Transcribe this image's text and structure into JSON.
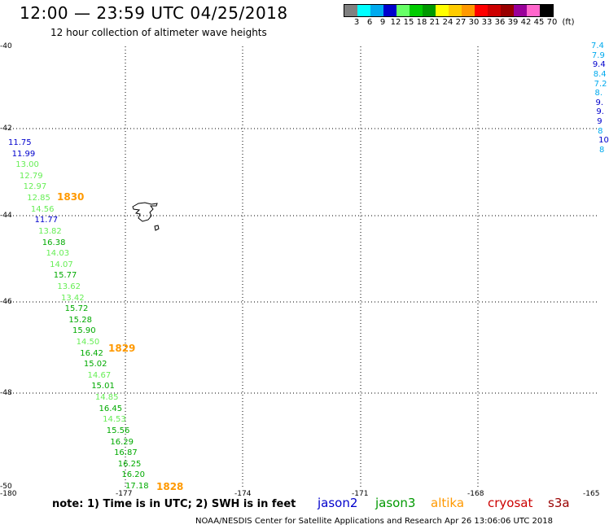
{
  "header": {
    "title": "12:00 — 23:59 UTC 04/25/2018",
    "subtitle": "12 hour collection of altimeter wave heights"
  },
  "colorbar": {
    "colors": [
      "#808080",
      "#00ffff",
      "#00aaee",
      "#0000cc",
      "#66ff66",
      "#00cc00",
      "#009900",
      "#ffff00",
      "#ffcc00",
      "#ff9900",
      "#ff0000",
      "#cc0000",
      "#990000",
      "#990099",
      "#ff66cc",
      "#000000"
    ],
    "labels": [
      "3",
      "6",
      "9",
      "12",
      "15",
      "18",
      "21",
      "24",
      "27",
      "30",
      "33",
      "36",
      "39",
      "42",
      "45",
      "70",
      "(ft)"
    ]
  },
  "axes": {
    "lat_labels": [
      "-40",
      "-42",
      "-44",
      "-46",
      "-48",
      "-50"
    ],
    "lon_labels": [
      "-180",
      "-177",
      "-174",
      "-171",
      "-168",
      "-165"
    ]
  },
  "observations": [
    {
      "v": "11.75",
      "c": "#0000cc"
    },
    {
      "v": "11.99",
      "c": "#0000cc"
    },
    {
      "v": "13.00",
      "c": "#66ee55"
    },
    {
      "v": "12.79",
      "c": "#66ee55"
    },
    {
      "v": "12.97",
      "c": "#66ee55"
    },
    {
      "v": "12.85",
      "c": "#66ee55"
    },
    {
      "v": "14.56",
      "c": "#66ee55"
    },
    {
      "v": "11.77",
      "c": "#0000cc"
    },
    {
      "v": "13.82",
      "c": "#66ee55"
    },
    {
      "v": "16.38",
      "c": "#00aa00"
    },
    {
      "v": "14.03",
      "c": "#66ee55"
    },
    {
      "v": "14.07",
      "c": "#66ee55"
    },
    {
      "v": "15.77",
      "c": "#00aa00"
    },
    {
      "v": "13.62",
      "c": "#66ee55"
    },
    {
      "v": "13.42",
      "c": "#66ee55"
    },
    {
      "v": "15.72",
      "c": "#00aa00"
    },
    {
      "v": "15.28",
      "c": "#00aa00"
    },
    {
      "v": "15.90",
      "c": "#00aa00"
    },
    {
      "v": "14.50",
      "c": "#66ee55"
    },
    {
      "v": "16.42",
      "c": "#00aa00"
    },
    {
      "v": "15.02",
      "c": "#00aa00"
    },
    {
      "v": "14.67",
      "c": "#66ee55"
    },
    {
      "v": "15.01",
      "c": "#00aa00"
    },
    {
      "v": "14.85",
      "c": "#66ee55"
    },
    {
      "v": "16.45",
      "c": "#00aa00"
    },
    {
      "v": "14.53",
      "c": "#66ee55"
    },
    {
      "v": "15.56",
      "c": "#00aa00"
    },
    {
      "v": "16.29",
      "c": "#00aa00"
    },
    {
      "v": "16.87",
      "c": "#00aa00"
    },
    {
      "v": "16.25",
      "c": "#00aa00"
    },
    {
      "v": "16.20",
      "c": "#00aa00"
    },
    {
      "v": "17.18",
      "c": "#00aa00"
    }
  ],
  "right_edge_observations": [
    {
      "v": "7.4",
      "c": "#00aaee"
    },
    {
      "v": "7.9",
      "c": "#00aaee"
    },
    {
      "v": "9.4",
      "c": "#0000cc"
    },
    {
      "v": "8.4",
      "c": "#00aaee"
    },
    {
      "v": "7.2",
      "c": "#00aaee"
    },
    {
      "v": "8.",
      "c": "#00aaee"
    },
    {
      "v": "9.",
      "c": "#0000cc"
    },
    {
      "v": "9.",
      "c": "#0000cc"
    },
    {
      "v": "9",
      "c": "#0000cc"
    },
    {
      "v": "8",
      "c": "#00aaee"
    },
    {
      "v": "10",
      "c": "#0000cc"
    },
    {
      "v": "8",
      "c": "#00aaee"
    }
  ],
  "time_labels": [
    "1830",
    "1829",
    "1828"
  ],
  "note": "note:  1) Time is in UTC;  2) SWH is in feet",
  "satellites": [
    {
      "name": "jason2",
      "color": "#0000cc"
    },
    {
      "name": "jason3",
      "color": "#009900"
    },
    {
      "name": "altika",
      "color": "#ff9900"
    },
    {
      "name": "cryosat",
      "color": "#cc0000"
    },
    {
      "name": "s3a",
      "color": "#990000"
    }
  ],
  "footer": "NOAA/NESDIS Center for Satellite Applications and Research    Apr 26 13:06:06 UTC 2018"
}
